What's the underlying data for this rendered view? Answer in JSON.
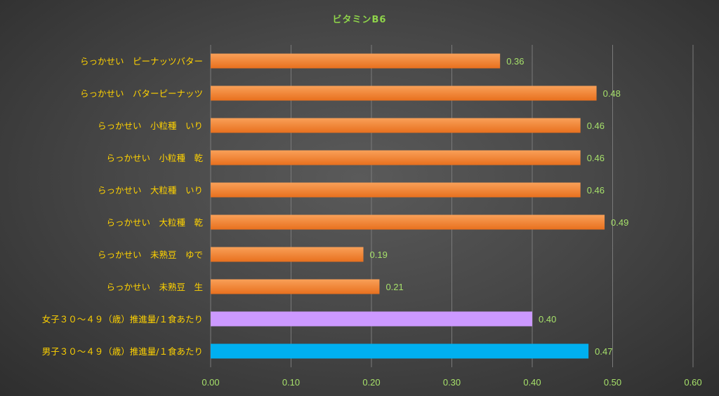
{
  "chart_data": {
    "type": "bar",
    "orientation": "horizontal",
    "title": "ビタミンB6",
    "xlabel": "",
    "ylabel": "",
    "xlim": [
      0,
      0.6
    ],
    "x_ticks": [
      "0.00",
      "0.10",
      "0.20",
      "0.30",
      "0.40",
      "0.50",
      "0.60"
    ],
    "grid": true,
    "categories": [
      "らっかせい　ピーナッツバター",
      "らっかせい　バターピーナッツ",
      "らっかせい　小粒種　いり",
      "らっかせい　小粒種　乾",
      "らっかせい　大粒種　いり",
      "らっかせい　大粒種　乾",
      "らっかせい　未熟豆　ゆで",
      "らっかせい　未熟豆　生",
      "女子３０～４９（歳）推進量/１食あたり",
      "男子３０～４９（歳）推進量/１食あたり"
    ],
    "values": [
      0.36,
      0.48,
      0.46,
      0.46,
      0.46,
      0.49,
      0.19,
      0.21,
      0.4,
      0.47
    ],
    "value_labels": [
      "0.36",
      "0.48",
      "0.46",
      "0.46",
      "0.46",
      "0.49",
      "0.19",
      "0.21",
      "0.40",
      "0.47"
    ],
    "colors": [
      "#f07a28",
      "#f07a28",
      "#f07a28",
      "#f07a28",
      "#f07a28",
      "#f07a28",
      "#f07a28",
      "#f07a28",
      "#cc99ff",
      "#00b0f0"
    ]
  }
}
